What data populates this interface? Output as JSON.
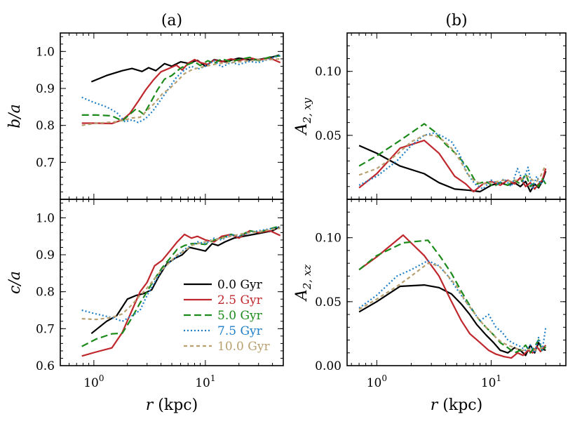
{
  "figure": {
    "left_title": "(a)",
    "right_title": "(b)",
    "xlabel": "r (kpc)",
    "colors": {
      "0.0 Gyr": "#000000",
      "2.5 Gyr": "#c0272d",
      "5.0 Gyr": "#1a8a1a",
      "7.5 Gyr": "#1f7fc8",
      "10.0 Gyr": "#b8a070"
    }
  },
  "legend": [
    "0.0 Gyr",
    "2.5 Gyr",
    "5.0 Gyr",
    "7.5 Gyr",
    "10.0 Gyr"
  ],
  "chart_data": [
    {
      "type": "line",
      "panel": "top-left",
      "title": "(a)",
      "xlabel": "",
      "ylabel": "b/a",
      "xscale": "log",
      "xlim": [
        0.5,
        50
      ],
      "ylim": [
        0.6,
        1.05
      ],
      "xticks": [
        "10^0",
        "10^1"
      ],
      "yticks": [
        0.7,
        0.8,
        0.9,
        1.0
      ],
      "series": [
        {
          "name": "0.0 Gyr",
          "x": [
            0.95,
            1.3,
            1.8,
            2.2,
            2.7,
            3.1,
            3.6,
            4.3,
            5.0,
            6.0,
            7.0,
            8.5,
            10,
            12,
            15,
            20,
            25,
            30,
            40,
            46
          ],
          "y": [
            0.918,
            0.935,
            0.948,
            0.954,
            0.946,
            0.956,
            0.948,
            0.967,
            0.96,
            0.972,
            0.968,
            0.976,
            0.96,
            0.978,
            0.972,
            0.982,
            0.977,
            0.978,
            0.985,
            0.99
          ]
        },
        {
          "name": "2.5 Gyr",
          "x": [
            0.78,
            1.05,
            1.45,
            1.8,
            2.1,
            2.5,
            2.9,
            3.4,
            4.0,
            4.8,
            5.5,
            6.2,
            7.0,
            8.0,
            9.0,
            10.5,
            12,
            14,
            17,
            20,
            25,
            30,
            38,
            47
          ],
          "y": [
            0.806,
            0.806,
            0.805,
            0.815,
            0.832,
            0.865,
            0.895,
            0.922,
            0.945,
            0.955,
            0.963,
            0.95,
            0.968,
            0.978,
            0.97,
            0.965,
            0.977,
            0.972,
            0.98,
            0.975,
            0.983,
            0.977,
            0.982,
            0.97
          ]
        },
        {
          "name": "5.0 Gyr",
          "x": [
            0.78,
            1.05,
            1.45,
            1.8,
            2.1,
            2.4,
            2.8,
            3.2,
            3.7,
            4.3,
            5.0,
            6.0,
            7.0,
            8.0,
            9.0,
            10.5,
            12,
            14,
            17,
            20,
            25,
            30,
            38,
            47
          ],
          "y": [
            0.828,
            0.828,
            0.826,
            0.812,
            0.83,
            0.845,
            0.83,
            0.86,
            0.895,
            0.925,
            0.935,
            0.955,
            0.965,
            0.972,
            0.962,
            0.975,
            0.968,
            0.98,
            0.972,
            0.978,
            0.984,
            0.975,
            0.985,
            0.988
          ]
        },
        {
          "name": "7.5 Gyr",
          "x": [
            0.78,
            1.0,
            1.3,
            1.6,
            1.9,
            2.2,
            2.5,
            2.9,
            3.4,
            4.0,
            4.7,
            5.5,
            6.5,
            7.5,
            8.5,
            10,
            12,
            14,
            17,
            20,
            25,
            30,
            38,
            47
          ],
          "y": [
            0.876,
            0.862,
            0.85,
            0.835,
            0.81,
            0.815,
            0.808,
            0.818,
            0.84,
            0.87,
            0.9,
            0.93,
            0.95,
            0.96,
            0.952,
            0.96,
            0.975,
            0.958,
            0.97,
            0.965,
            0.973,
            0.97,
            0.98,
            0.99
          ]
        },
        {
          "name": "10.0 Gyr",
          "x": [
            0.78,
            1.0,
            1.3,
            1.6,
            1.9,
            2.2,
            2.6,
            3.0,
            3.5,
            4.1,
            4.8,
            5.6,
            6.5,
            7.5,
            8.5,
            10,
            12,
            14,
            17,
            20,
            25,
            30,
            38,
            47
          ],
          "y": [
            0.8,
            0.805,
            0.808,
            0.81,
            0.815,
            0.82,
            0.822,
            0.84,
            0.86,
            0.885,
            0.9,
            0.92,
            0.94,
            0.95,
            0.955,
            0.96,
            0.965,
            0.968,
            0.97,
            0.972,
            0.975,
            0.977,
            0.978,
            0.98
          ]
        }
      ]
    },
    {
      "type": "line",
      "panel": "bottom-left",
      "title": "",
      "xlabel": "r (kpc)",
      "ylabel": "c/a",
      "xscale": "log",
      "xlim": [
        0.5,
        50
      ],
      "ylim": [
        0.6,
        1.05
      ],
      "xticks": [
        "10^0",
        "10^1"
      ],
      "yticks": [
        0.6,
        0.7,
        0.8,
        0.9,
        1.0
      ],
      "series": [
        {
          "name": "0.0 Gyr",
          "x": [
            0.95,
            1.3,
            1.6,
            2.0,
            2.4,
            2.8,
            3.3,
            3.8,
            4.5,
            5.3,
            6.2,
            7.2,
            8.5,
            10,
            11.5,
            13,
            15,
            18,
            22,
            27,
            33,
            40,
            46
          ],
          "y": [
            0.687,
            0.72,
            0.735,
            0.78,
            0.79,
            0.795,
            0.805,
            0.84,
            0.875,
            0.89,
            0.9,
            0.92,
            0.915,
            0.91,
            0.93,
            0.925,
            0.935,
            0.945,
            0.95,
            0.955,
            0.96,
            0.965,
            0.975
          ]
        },
        {
          "name": "2.5 Gyr",
          "x": [
            0.78,
            1.05,
            1.45,
            1.8,
            2.2,
            2.6,
            3.0,
            3.5,
            4.1,
            4.8,
            5.6,
            6.5,
            7.5,
            8.5,
            10,
            12,
            14,
            17,
            20,
            25,
            30,
            38,
            47
          ],
          "y": [
            0.626,
            0.637,
            0.648,
            0.69,
            0.75,
            0.8,
            0.825,
            0.87,
            0.885,
            0.91,
            0.935,
            0.955,
            0.945,
            0.95,
            0.94,
            0.935,
            0.95,
            0.955,
            0.945,
            0.965,
            0.96,
            0.965,
            0.952
          ]
        },
        {
          "name": "5.0 Gyr",
          "x": [
            0.78,
            1.05,
            1.45,
            1.8,
            2.2,
            2.6,
            3.0,
            3.5,
            4.1,
            4.8,
            5.6,
            6.5,
            7.5,
            8.5,
            10,
            12,
            14,
            17,
            20,
            25,
            30,
            38,
            47
          ],
          "y": [
            0.652,
            0.672,
            0.686,
            0.688,
            0.73,
            0.77,
            0.8,
            0.835,
            0.865,
            0.89,
            0.915,
            0.925,
            0.93,
            0.93,
            0.928,
            0.94,
            0.945,
            0.955,
            0.95,
            0.965,
            0.96,
            0.97,
            0.978
          ]
        },
        {
          "name": "7.5 Gyr",
          "x": [
            0.78,
            1.05,
            1.45,
            1.8,
            2.2,
            2.6,
            3.0,
            3.5,
            4.1,
            4.8,
            5.6,
            6.5,
            7.5,
            8.5,
            10,
            12,
            14,
            17,
            20,
            25,
            30,
            38,
            47
          ],
          "y": [
            0.75,
            0.74,
            0.73,
            0.72,
            0.735,
            0.75,
            0.79,
            0.825,
            0.86,
            0.88,
            0.895,
            0.915,
            0.925,
            0.935,
            0.93,
            0.945,
            0.94,
            0.955,
            0.95,
            0.96,
            0.965,
            0.97,
            0.975
          ]
        },
        {
          "name": "10.0 Gyr",
          "x": [
            0.78,
            1.05,
            1.45,
            1.8,
            2.2,
            2.6,
            3.0,
            3.5,
            4.1,
            4.8,
            5.6,
            6.5,
            7.5,
            8.5,
            10,
            12,
            14,
            17,
            20,
            25,
            30,
            38,
            47
          ],
          "y": [
            0.727,
            0.725,
            0.73,
            0.74,
            0.765,
            0.79,
            0.81,
            0.835,
            0.86,
            0.88,
            0.9,
            0.91,
            0.925,
            0.93,
            0.935,
            0.94,
            0.945,
            0.95,
            0.955,
            0.96,
            0.962,
            0.968,
            0.972
          ]
        }
      ]
    },
    {
      "type": "line",
      "panel": "top-right",
      "title": "(b)",
      "xlabel": "",
      "ylabel": "A2, xy",
      "xscale": "log",
      "xlim": [
        0.55,
        45
      ],
      "ylim": [
        0.0,
        0.13
      ],
      "xticks": [
        "10^0",
        "10^1"
      ],
      "yticks": [
        0.05,
        0.1
      ],
      "series": [
        {
          "name": "0.0 Gyr",
          "x": [
            0.7,
            1.0,
            1.6,
            2.6,
            3.5,
            4.8,
            6.5,
            8.0,
            10,
            12,
            14,
            16,
            18,
            20,
            22,
            24,
            26,
            28,
            30
          ],
          "y": [
            0.042,
            0.036,
            0.026,
            0.02,
            0.013,
            0.008,
            0.007,
            0.006,
            0.011,
            0.013,
            0.011,
            0.013,
            0.01,
            0.014,
            0.006,
            0.012,
            0.009,
            0.014,
            0.022
          ]
        },
        {
          "name": "2.5 Gyr",
          "x": [
            0.7,
            1.0,
            1.6,
            2.6,
            3.5,
            4.8,
            6.0,
            7.0,
            8.5,
            10,
            12,
            14,
            16,
            18,
            20,
            22,
            24,
            26,
            28,
            30
          ],
          "y": [
            0.009,
            0.02,
            0.04,
            0.046,
            0.036,
            0.018,
            0.012,
            0.006,
            0.012,
            0.014,
            0.011,
            0.015,
            0.012,
            0.017,
            0.01,
            0.013,
            0.008,
            0.012,
            0.015,
            0.024
          ]
        },
        {
          "name": "5.0 Gyr",
          "x": [
            0.7,
            1.0,
            1.6,
            2.6,
            3.2,
            4.0,
            5.0,
            6.2,
            7.5,
            9.0,
            10.5,
            12,
            14,
            16,
            18,
            20,
            22,
            24,
            26,
            28,
            30
          ],
          "y": [
            0.026,
            0.034,
            0.046,
            0.059,
            0.053,
            0.043,
            0.035,
            0.025,
            0.012,
            0.014,
            0.01,
            0.013,
            0.011,
            0.015,
            0.012,
            0.02,
            0.01,
            0.013,
            0.01,
            0.016,
            0.012
          ]
        },
        {
          "name": "7.5 Gyr",
          "x": [
            0.7,
            1.0,
            1.5,
            2.0,
            2.6,
            3.2,
            3.8,
            4.5,
            5.3,
            6.2,
            7.2,
            8.5,
            10,
            11.5,
            13,
            15,
            17,
            19,
            21,
            23,
            25,
            27,
            30
          ],
          "y": [
            0.011,
            0.018,
            0.03,
            0.042,
            0.05,
            0.052,
            0.049,
            0.045,
            0.035,
            0.02,
            0.012,
            0.008,
            0.015,
            0.012,
            0.016,
            0.01,
            0.024,
            0.014,
            0.025,
            0.008,
            0.018,
            0.012,
            0.016
          ]
        },
        {
          "name": "10.0 Gyr",
          "x": [
            0.7,
            1.0,
            1.5,
            2.0,
            2.6,
            3.2,
            3.8,
            4.5,
            5.3,
            6.2,
            7.2,
            8.5,
            10,
            11.5,
            13,
            15,
            17,
            19,
            21,
            23,
            25,
            27,
            30
          ],
          "y": [
            0.019,
            0.024,
            0.035,
            0.045,
            0.05,
            0.05,
            0.046,
            0.04,
            0.031,
            0.02,
            0.014,
            0.012,
            0.013,
            0.014,
            0.015,
            0.014,
            0.015,
            0.016,
            0.018,
            0.015,
            0.014,
            0.018,
            0.027
          ]
        }
      ]
    },
    {
      "type": "line",
      "panel": "bottom-right",
      "title": "",
      "xlabel": "r (kpc)",
      "ylabel": "A2, xz",
      "xscale": "log",
      "xlim": [
        0.55,
        45
      ],
      "ylim": [
        0.0,
        0.13
      ],
      "xticks": [
        "10^0",
        "10^1"
      ],
      "yticks": [
        0.0,
        0.05,
        0.1
      ],
      "series": [
        {
          "name": "0.0 Gyr",
          "x": [
            0.7,
            1.0,
            1.6,
            2.6,
            3.5,
            4.5,
            5.5,
            6.5,
            7.5,
            9.0,
            10.5,
            12,
            14,
            16,
            18,
            20,
            22,
            24,
            26,
            28,
            30
          ],
          "y": [
            0.042,
            0.05,
            0.062,
            0.063,
            0.061,
            0.056,
            0.048,
            0.04,
            0.032,
            0.024,
            0.018,
            0.012,
            0.01,
            0.014,
            0.012,
            0.008,
            0.016,
            0.01,
            0.018,
            0.013,
            0.012
          ]
        },
        {
          "name": "2.5 Gyr",
          "x": [
            0.7,
            1.0,
            1.7,
            2.6,
            3.5,
            4.5,
            5.5,
            6.5,
            8.0,
            9.5,
            11,
            13,
            15,
            17,
            19,
            21,
            23,
            25,
            27,
            30
          ],
          "y": [
            0.075,
            0.085,
            0.102,
            0.086,
            0.07,
            0.05,
            0.035,
            0.025,
            0.018,
            0.012,
            0.009,
            0.007,
            0.006,
            0.01,
            0.008,
            0.012,
            0.01,
            0.015,
            0.011,
            0.016
          ]
        },
        {
          "name": "5.0 Gyr",
          "x": [
            0.7,
            1.0,
            1.7,
            2.8,
            3.6,
            4.5,
            5.5,
            6.5,
            7.5,
            9.0,
            10.5,
            12,
            14,
            16,
            18,
            20,
            22,
            24,
            26,
            28,
            30
          ],
          "y": [
            0.075,
            0.086,
            0.096,
            0.098,
            0.085,
            0.072,
            0.058,
            0.047,
            0.038,
            0.03,
            0.024,
            0.018,
            0.014,
            0.01,
            0.012,
            0.016,
            0.01,
            0.015,
            0.02,
            0.011,
            0.015
          ]
        },
        {
          "name": "7.5 Gyr",
          "x": [
            0.7,
            1.0,
            1.5,
            2.0,
            2.8,
            3.5,
            4.2,
            5.0,
            6.0,
            7.0,
            8.0,
            9.5,
            11,
            12.5,
            14,
            16,
            18,
            20,
            22,
            24,
            26,
            28,
            30
          ],
          "y": [
            0.045,
            0.055,
            0.07,
            0.075,
            0.082,
            0.078,
            0.07,
            0.06,
            0.05,
            0.042,
            0.035,
            0.04,
            0.03,
            0.026,
            0.02,
            0.017,
            0.015,
            0.012,
            0.016,
            0.01,
            0.022,
            0.012,
            0.03
          ]
        },
        {
          "name": "10.0 Gyr",
          "x": [
            0.7,
            1.0,
            1.5,
            2.0,
            2.8,
            3.5,
            4.2,
            5.0,
            6.0,
            7.0,
            8.0,
            9.5,
            11,
            12.5,
            14,
            16,
            18,
            20,
            22,
            24,
            26,
            28,
            30
          ],
          "y": [
            0.044,
            0.052,
            0.062,
            0.07,
            0.08,
            0.078,
            0.07,
            0.062,
            0.05,
            0.042,
            0.035,
            0.028,
            0.022,
            0.018,
            0.016,
            0.014,
            0.012,
            0.012,
            0.013,
            0.012,
            0.013,
            0.014,
            0.015
          ]
        }
      ]
    }
  ]
}
